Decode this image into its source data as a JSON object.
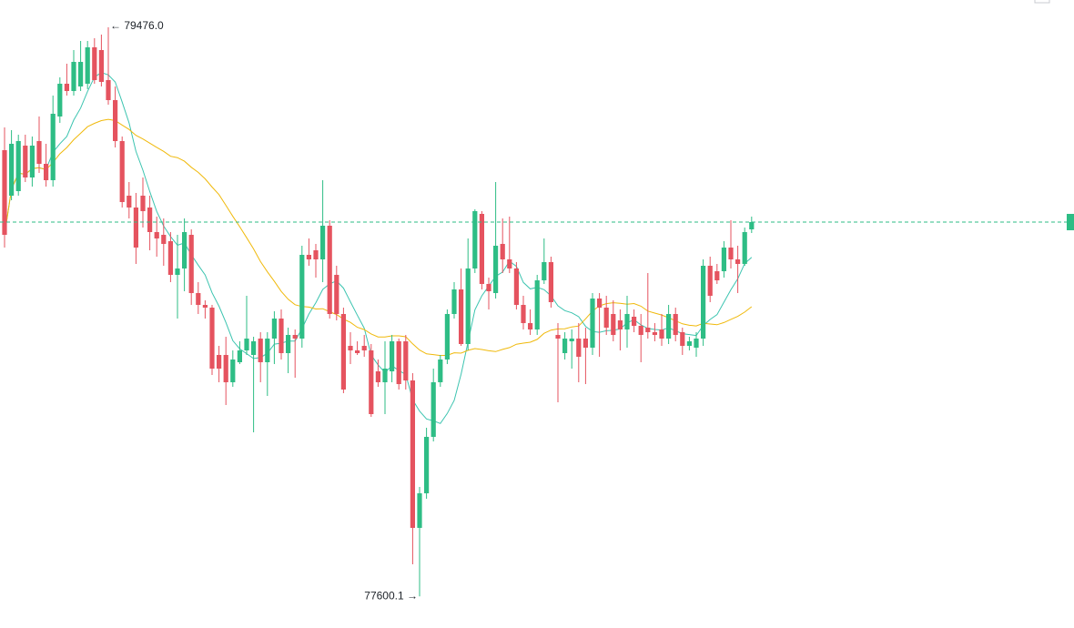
{
  "chart_data": {
    "type": "candlestick",
    "high_label": "← 79476.0",
    "low_label": "77600.1 →",
    "up_color": "#2ebd85",
    "down_color": "#e5535f",
    "ylim": [
      77496,
      79566
    ],
    "moving_averages": [
      {
        "period": 7,
        "color": "#3cc4b0"
      },
      {
        "period": 25,
        "color": "#f0b90b"
      }
    ],
    "open": [
      79071,
      78921,
      78936,
      79086,
      78981,
      79101,
      79026,
      78972,
      79182,
      79290,
      79266,
      79281,
      79290,
      79410,
      79401,
      79302,
      79236,
      79101,
      78921,
      78882,
      78921,
      78882,
      78801,
      78792,
      78771,
      78660,
      78681,
      78792,
      78600,
      78561,
      78552,
      78396,
      78396,
      78306,
      78372,
      78411,
      78396,
      78450,
      78372,
      78450,
      78516,
      78402,
      78462,
      78450,
      78726,
      78741,
      78711,
      78822,
      78660,
      78531,
      78426,
      78411,
      78426,
      78411,
      78342,
      78306,
      78342,
      78441,
      78441,
      78312,
      77826,
      77940,
      78126,
      78306,
      78381,
      78531,
      78612,
      78432,
      78681,
      78861,
      78630,
      78600,
      78762,
      78711,
      78681,
      78561,
      78501,
      78480,
      78642,
      78702,
      78462,
      78402,
      78441,
      78450,
      78450,
      78420,
      78582,
      78552,
      78531,
      78510,
      78480,
      78522,
      78492,
      78486,
      78471,
      78480,
      78450,
      78531,
      78471,
      78426,
      78420,
      78450,
      78690,
      78672,
      78672,
      78750,
      78711,
      78696,
      78810
    ],
    "high": [
      79146,
      79137,
      79122,
      79122,
      79116,
      79182,
      79092,
      79251,
      79311,
      79356,
      79401,
      79431,
      79431,
      79440,
      79452,
      79476.0,
      79281,
      79116,
      78966,
      78930,
      78981,
      78921,
      78852,
      78846,
      78801,
      78792,
      78846,
      78810,
      78636,
      78576,
      78561,
      78426,
      78456,
      78411,
      78441,
      78591,
      78456,
      78471,
      78471,
      78540,
      78546,
      78486,
      78480,
      78756,
      78780,
      78762,
      78972,
      78840,
      78690,
      78552,
      78471,
      78441,
      78462,
      78432,
      78381,
      78441,
      78462,
      78450,
      78462,
      78336,
      77961,
      78156,
      78351,
      78396,
      78546,
      78636,
      78681,
      78780,
      78876,
      78870,
      78651,
      78966,
      78846,
      78852,
      78702,
      78591,
      78546,
      78660,
      78780,
      78720,
      78501,
      78471,
      78480,
      78501,
      78486,
      78600,
      78600,
      78591,
      78576,
      78546,
      78591,
      78546,
      78531,
      78666,
      78501,
      78531,
      78561,
      78552,
      78486,
      78456,
      78471,
      78711,
      78720,
      78696,
      78771,
      78840,
      78756,
      78816,
      78852
    ],
    "low": [
      78750,
      78906,
      78921,
      78966,
      78951,
      78996,
      78951,
      78951,
      79161,
      79251,
      79251,
      79266,
      79272,
      79290,
      79281,
      79221,
      79080,
      78882,
      78846,
      78696,
      78816,
      78741,
      78720,
      78690,
      78636,
      78516,
      78606,
      78561,
      78531,
      78516,
      78330,
      78306,
      78231,
      78291,
      78366,
      78396,
      78141,
      78306,
      78261,
      78366,
      78381,
      78336,
      78321,
      78420,
      78690,
      78651,
      78636,
      78516,
      78510,
      78270,
      78366,
      78396,
      78390,
      78192,
      78291,
      78201,
      78306,
      78282,
      78282,
      77706,
      77600.1,
      77922,
      78111,
      78291,
      78366,
      78516,
      78426,
      78411,
      78666,
      78612,
      78546,
      78582,
      78666,
      78666,
      78546,
      78480,
      78462,
      78462,
      78630,
      78552,
      78240,
      78381,
      78351,
      78306,
      78300,
      78396,
      78390,
      78462,
      78441,
      78411,
      78420,
      78471,
      78372,
      78450,
      78441,
      78426,
      78432,
      78441,
      78396,
      78411,
      78390,
      78426,
      78570,
      78630,
      78651,
      78681,
      78600,
      78690,
      78798
    ],
    "close": [
      78792,
      79092,
      79101,
      78981,
      79086,
      79026,
      78972,
      79191,
      79290,
      79266,
      79362,
      79362,
      79410,
      79302,
      79296,
      79236,
      79101,
      78900,
      78882,
      78750,
      78870,
      78801,
      78780,
      78762,
      78660,
      78681,
      78801,
      78600,
      78561,
      78552,
      78351,
      78351,
      78306,
      78381,
      78411,
      78450,
      78441,
      78372,
      78450,
      78516,
      78402,
      78462,
      78450,
      78726,
      78711,
      78711,
      78822,
      78531,
      78531,
      78282,
      78411,
      78402,
      78411,
      78201,
      78306,
      78351,
      78441,
      78300,
      78312,
      77826,
      77940,
      78126,
      78306,
      78381,
      78531,
      78612,
      78432,
      78681,
      78870,
      78630,
      78606,
      78756,
      78711,
      78681,
      78561,
      78501,
      78480,
      78642,
      78702,
      78570,
      78450,
      78450,
      78450,
      78390,
      78420,
      78582,
      78552,
      78486,
      78462,
      78480,
      78531,
      78492,
      78462,
      78471,
      78462,
      78450,
      78531,
      78462,
      78426,
      78441,
      78450,
      78690,
      78591,
      78642,
      78750,
      78711,
      78696,
      78801,
      78834
    ]
  }
}
